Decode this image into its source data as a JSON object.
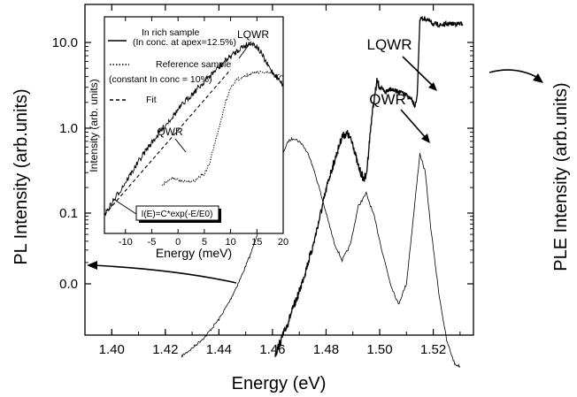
{
  "chart_data": [
    {
      "type": "line",
      "xlabel": "Energy (eV)",
      "ylabel": "PL Intensity (arb.units)",
      "ylabel_right": "PLE Intensity (arb.units)",
      "xlim": [
        1.39,
        1.535
      ],
      "x_ticks": [
        "1.40",
        "1.42",
        "1.44",
        "1.46",
        "1.48",
        "1.50",
        "1.52"
      ],
      "y_ticks": [
        "10.0",
        "1.0",
        "0.1",
        "0.0"
      ],
      "annotations": {
        "qwr": "QWR",
        "lqwr": "LQWR"
      },
      "series": [
        {
          "style": "thin",
          "x": [
            1.426,
            1.43,
            1.435,
            1.44,
            1.444,
            1.448,
            1.452,
            1.456,
            1.46,
            1.463,
            1.466,
            1.468,
            1.471,
            1.474,
            1.477,
            1.48,
            1.483,
            1.486,
            1.489,
            1.492,
            1.495,
            1.498,
            1.501,
            1.504,
            1.507,
            1.51,
            1.513,
            1.515,
            1.517,
            1.519,
            1.522,
            1.525,
            1.528,
            1.53
          ],
          "y": [
            0.0021,
            0.0026,
            0.0036,
            0.0057,
            0.0093,
            0.017,
            0.034,
            0.085,
            0.22,
            0.45,
            0.7,
            0.76,
            0.65,
            0.45,
            0.22,
            0.1,
            0.045,
            0.028,
            0.042,
            0.12,
            0.17,
            0.09,
            0.035,
            0.015,
            0.0085,
            0.015,
            0.12,
            0.5,
            0.3,
            0.07,
            0.012,
            0.0032,
            0.0017,
            0.0016
          ]
        },
        {
          "style": "thick-noisy",
          "x": [
            1.461,
            1.465,
            1.47,
            1.475,
            1.478,
            1.481,
            1.484,
            1.486,
            1.488,
            1.49,
            1.492,
            1.494,
            1.495,
            1.496,
            1.497,
            1.498,
            1.499,
            1.5,
            1.502,
            1.504,
            1.506,
            1.508,
            1.51,
            1.512,
            1.513,
            1.5135,
            1.514,
            1.515,
            1.517,
            1.52,
            1.523,
            1.526,
            1.529,
            1.531
          ],
          "y": [
            0.0022,
            0.0045,
            0.012,
            0.04,
            0.1,
            0.25,
            0.5,
            0.8,
            0.85,
            0.65,
            0.35,
            0.25,
            0.27,
            0.6,
            1.3,
            2.2,
            3.5,
            3.0,
            2.6,
            2.9,
            2.7,
            2.6,
            2.4,
            2.1,
            1.8,
            1.9,
            2.3,
            19,
            19,
            16.5,
            16,
            16.5,
            16.5,
            16.5
          ]
        }
      ]
    },
    {
      "type": "line",
      "xlabel": "Energy  (meV)",
      "ylabel": "Intensity (arb. units)",
      "xlim": [
        -14,
        20
      ],
      "x_ticks": [
        "-10",
        "-5",
        "0",
        "5",
        "10",
        "15",
        "20"
      ],
      "legend": [
        {
          "label": "In rich sample",
          "style": "solid"
        },
        {
          "label": "(In conc. at apex=12.5%)",
          "style": "none"
        },
        {
          "label": "Reference sample",
          "style": "dotted"
        },
        {
          "label": "(constant In conc = 10%)",
          "style": "none"
        },
        {
          "label": "Fit",
          "style": "dashed"
        }
      ],
      "annotations": {
        "lqwr": "LQWR",
        "qwr": "QWR",
        "formula": "I(E)=C*exp(-E/E0)"
      },
      "series": [
        {
          "name": "In rich sample",
          "style": "solid",
          "x": [
            -14,
            -10,
            -6,
            -2,
            2,
            6,
            9,
            11,
            12,
            13,
            13.8,
            15,
            16,
            17,
            18,
            19,
            20
          ],
          "y": [
            0.12,
            0.3,
            0.75,
            1.6,
            3.2,
            5.8,
            9,
            11.5,
            13,
            14,
            15,
            13.5,
            10.5,
            8,
            6.5,
            5.5,
            4.5
          ]
        },
        {
          "name": "Reference sample",
          "style": "dotted",
          "x": [
            -3,
            -1,
            1,
            3,
            5,
            6,
            7,
            8,
            9,
            10,
            11,
            13,
            15,
            17,
            19,
            20
          ],
          "y": [
            0.28,
            0.34,
            0.3,
            0.31,
            0.38,
            0.5,
            0.9,
            1.5,
            2.8,
            4.2,
            5.2,
            6,
            6.5,
            6.4,
            6,
            5.8
          ]
        },
        {
          "name": "Fit",
          "style": "dashed",
          "x": [
            -14,
            10
          ],
          "y": [
            0.12,
            7
          ]
        }
      ]
    }
  ]
}
